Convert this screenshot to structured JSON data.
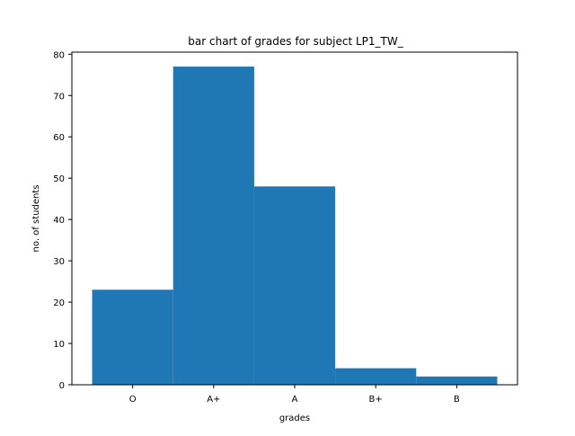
{
  "chart_data": {
    "type": "bar",
    "title": "bar chart of grades for subject LP1_TW_",
    "xlabel": "grades",
    "ylabel": "no. of students",
    "categories": [
      "O",
      "A+",
      "A",
      "B+",
      "B"
    ],
    "values": [
      23,
      77,
      48,
      4,
      2
    ],
    "ylim": [
      0,
      80.5
    ],
    "yticks": [
      0,
      10,
      20,
      30,
      40,
      50,
      60,
      70,
      80
    ],
    "bar_color": "#1f77b4",
    "grid": false,
    "legend": "none"
  }
}
